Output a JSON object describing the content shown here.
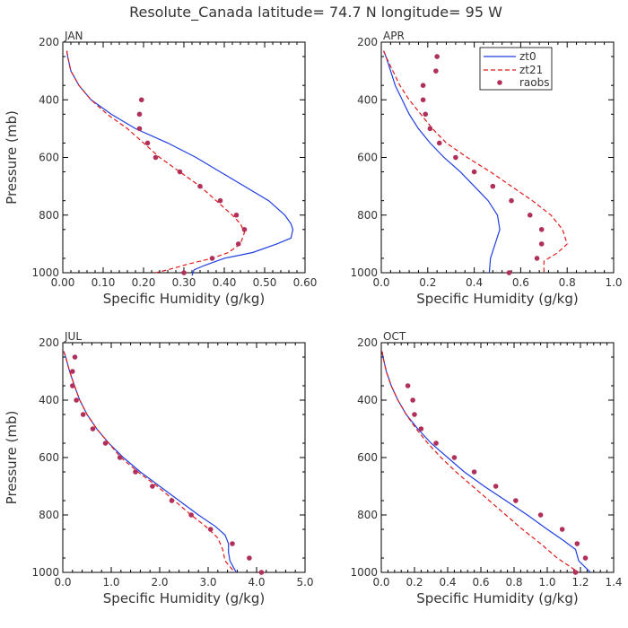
{
  "figure_title": "Resolute_Canada  latitude= 74.7 N longitude= 95 W",
  "colors": {
    "zt0": "#1f3fe0",
    "zt21": "#e01a1a",
    "raobs": "#b0305a"
  },
  "legend": {
    "zt0": "zt0",
    "zt21": "zt21",
    "raobs": "raobs"
  },
  "chart_data": [
    {
      "type": "line",
      "panel": "JAN",
      "title": "JAN",
      "xlabel": "Specific Humidity (g/kg)",
      "ylabel": "Pressure (mb)",
      "xlim": [
        0,
        0.6
      ],
      "ylim": [
        1000,
        200
      ],
      "xticks": [
        0,
        0.1,
        0.2,
        0.3,
        0.4,
        0.5,
        0.6
      ],
      "xtick_labels": [
        "0.00",
        "0.10",
        "0.20",
        "0.30",
        "0.40",
        "0.50",
        "0.60"
      ],
      "yticks": [
        1000,
        800,
        600,
        400,
        200
      ],
      "ytick_labels": [
        "1000",
        "800",
        "600",
        "400",
        "200"
      ],
      "series": [
        {
          "name": "zt0",
          "style": "solid",
          "points": [
            [
              0.01,
              230
            ],
            [
              0.012,
              250
            ],
            [
              0.02,
              300
            ],
            [
              0.04,
              350
            ],
            [
              0.07,
              400
            ],
            [
              0.12,
              450
            ],
            [
              0.18,
              500
            ],
            [
              0.26,
              550
            ],
            [
              0.33,
              600
            ],
            [
              0.39,
              650
            ],
            [
              0.45,
              700
            ],
            [
              0.51,
              750
            ],
            [
              0.55,
              800
            ],
            [
              0.565,
              830
            ],
            [
              0.57,
              850
            ],
            [
              0.565,
              880
            ],
            [
              0.53,
              900
            ],
            [
              0.47,
              930
            ],
            [
              0.4,
              950
            ],
            [
              0.35,
              975
            ],
            [
              0.325,
              990
            ],
            [
              0.32,
              1010
            ]
          ]
        },
        {
          "name": "zt21",
          "style": "dashed",
          "points": [
            [
              0.01,
              230
            ],
            [
              0.012,
              250
            ],
            [
              0.02,
              300
            ],
            [
              0.04,
              350
            ],
            [
              0.07,
              400
            ],
            [
              0.11,
              450
            ],
            [
              0.16,
              500
            ],
            [
              0.2,
              550
            ],
            [
              0.24,
              600
            ],
            [
              0.29,
              650
            ],
            [
              0.34,
              700
            ],
            [
              0.38,
              750
            ],
            [
              0.42,
              800
            ],
            [
              0.44,
              830
            ],
            [
              0.45,
              860
            ],
            [
              0.44,
              900
            ],
            [
              0.41,
              930
            ],
            [
              0.37,
              950
            ],
            [
              0.31,
              970
            ],
            [
              0.26,
              990
            ],
            [
              0.23,
              1000
            ]
          ]
        },
        {
          "name": "raobs",
          "style": "points",
          "points": [
            [
              0.195,
              400
            ],
            [
              0.19,
              450
            ],
            [
              0.19,
              500
            ],
            [
              0.21,
              550
            ],
            [
              0.23,
              600
            ],
            [
              0.29,
              650
            ],
            [
              0.34,
              700
            ],
            [
              0.39,
              750
            ],
            [
              0.43,
              800
            ],
            [
              0.45,
              850
            ],
            [
              0.435,
              900
            ],
            [
              0.37,
              950
            ],
            [
              0.3,
              1000
            ]
          ]
        }
      ]
    },
    {
      "type": "line",
      "panel": "APR",
      "title": "APR",
      "xlabel": "Specific Humidity (g/kg)",
      "ylabel": "Pressure (mb)",
      "xlim": [
        0,
        1.0
      ],
      "ylim": [
        1000,
        200
      ],
      "xticks": [
        0,
        0.2,
        0.4,
        0.6,
        0.8,
        1.0
      ],
      "xtick_labels": [
        "0.0",
        "0.2",
        "0.4",
        "0.6",
        "0.8",
        "1.0"
      ],
      "yticks": [
        1000,
        800,
        600,
        400,
        200
      ],
      "ytick_labels": [
        "1000",
        "800",
        "600",
        "400",
        "200"
      ],
      "legend_position": "top-right",
      "series": [
        {
          "name": "zt0",
          "style": "solid",
          "points": [
            [
              0.01,
              230
            ],
            [
              0.02,
              250
            ],
            [
              0.04,
              300
            ],
            [
              0.06,
              350
            ],
            [
              0.09,
              400
            ],
            [
              0.12,
              450
            ],
            [
              0.16,
              500
            ],
            [
              0.21,
              550
            ],
            [
              0.27,
              600
            ],
            [
              0.34,
              650
            ],
            [
              0.4,
              700
            ],
            [
              0.46,
              750
            ],
            [
              0.5,
              800
            ],
            [
              0.51,
              850
            ],
            [
              0.49,
              900
            ],
            [
              0.47,
              950
            ],
            [
              0.465,
              1000
            ]
          ]
        },
        {
          "name": "zt21",
          "style": "dashed",
          "points": [
            [
              0.01,
              230
            ],
            [
              0.02,
              250
            ],
            [
              0.05,
              300
            ],
            [
              0.08,
              350
            ],
            [
              0.12,
              400
            ],
            [
              0.17,
              450
            ],
            [
              0.22,
              500
            ],
            [
              0.28,
              550
            ],
            [
              0.37,
              600
            ],
            [
              0.47,
              650
            ],
            [
              0.56,
              700
            ],
            [
              0.65,
              750
            ],
            [
              0.73,
              800
            ],
            [
              0.78,
              850
            ],
            [
              0.8,
              900
            ],
            [
              0.76,
              930
            ],
            [
              0.7,
              960
            ],
            [
              0.7,
              1000
            ]
          ]
        },
        {
          "name": "raobs",
          "style": "points",
          "points": [
            [
              0.24,
              250
            ],
            [
              0.235,
              300
            ],
            [
              0.18,
              350
            ],
            [
              0.18,
              400
            ],
            [
              0.19,
              450
            ],
            [
              0.21,
              500
            ],
            [
              0.25,
              550
            ],
            [
              0.32,
              600
            ],
            [
              0.4,
              650
            ],
            [
              0.48,
              700
            ],
            [
              0.56,
              750
            ],
            [
              0.64,
              800
            ],
            [
              0.69,
              850
            ],
            [
              0.69,
              900
            ],
            [
              0.67,
              950
            ],
            [
              0.55,
              1000
            ]
          ]
        }
      ]
    },
    {
      "type": "line",
      "panel": "JUL",
      "title": "JUL",
      "xlabel": "Specific Humidity (g/kg)",
      "ylabel": "Pressure (mb)",
      "xlim": [
        0,
        5.0
      ],
      "ylim": [
        1000,
        200
      ],
      "xticks": [
        0,
        1,
        2,
        3,
        4,
        5
      ],
      "xtick_labels": [
        "0.0",
        "1.0",
        "2.0",
        "3.0",
        "4.0",
        "5.0"
      ],
      "yticks": [
        1000,
        800,
        600,
        400,
        200
      ],
      "ytick_labels": [
        "1000",
        "800",
        "600",
        "400",
        "200"
      ],
      "series": [
        {
          "name": "zt0",
          "style": "solid",
          "points": [
            [
              0.02,
              230
            ],
            [
              0.06,
              250
            ],
            [
              0.14,
              300
            ],
            [
              0.24,
              350
            ],
            [
              0.35,
              400
            ],
            [
              0.5,
              450
            ],
            [
              0.7,
              500
            ],
            [
              0.95,
              550
            ],
            [
              1.25,
              600
            ],
            [
              1.6,
              650
            ],
            [
              2.0,
              700
            ],
            [
              2.4,
              750
            ],
            [
              2.8,
              800
            ],
            [
              3.15,
              840
            ],
            [
              3.35,
              870
            ],
            [
              3.42,
              900
            ],
            [
              3.42,
              930
            ],
            [
              3.45,
              960
            ],
            [
              3.58,
              1000
            ]
          ]
        },
        {
          "name": "zt21",
          "style": "dashed",
          "points": [
            [
              0.02,
              230
            ],
            [
              0.06,
              250
            ],
            [
              0.14,
              300
            ],
            [
              0.24,
              350
            ],
            [
              0.35,
              400
            ],
            [
              0.5,
              450
            ],
            [
              0.7,
              500
            ],
            [
              0.95,
              550
            ],
            [
              1.2,
              600
            ],
            [
              1.55,
              650
            ],
            [
              1.95,
              700
            ],
            [
              2.3,
              750
            ],
            [
              2.65,
              800
            ],
            [
              2.95,
              840
            ],
            [
              3.2,
              880
            ],
            [
              3.3,
              920
            ],
            [
              3.35,
              960
            ],
            [
              3.55,
              1000
            ]
          ]
        },
        {
          "name": "raobs",
          "style": "points",
          "points": [
            [
              0.25,
              250
            ],
            [
              0.2,
              300
            ],
            [
              0.2,
              350
            ],
            [
              0.28,
              400
            ],
            [
              0.42,
              450
            ],
            [
              0.62,
              500
            ],
            [
              0.88,
              550
            ],
            [
              1.18,
              600
            ],
            [
              1.5,
              650
            ],
            [
              1.85,
              700
            ],
            [
              2.25,
              750
            ],
            [
              2.65,
              800
            ],
            [
              3.05,
              850
            ],
            [
              3.5,
              900
            ],
            [
              3.85,
              950
            ],
            [
              4.1,
              1000
            ]
          ]
        }
      ]
    },
    {
      "type": "line",
      "panel": "OCT",
      "title": "OCT",
      "xlabel": "Specific Humidity (g/kg)",
      "ylabel": "Pressure (mb)",
      "xlim": [
        0,
        1.4
      ],
      "ylim": [
        1000,
        200
      ],
      "xticks": [
        0,
        0.2,
        0.4,
        0.6,
        0.8,
        1.0,
        1.2,
        1.4
      ],
      "xtick_labels": [
        "0.0",
        "0.2",
        "0.4",
        "0.6",
        "0.8",
        "1.0",
        "1.2",
        "1.4"
      ],
      "yticks": [
        1000,
        800,
        600,
        400,
        200
      ],
      "ytick_labels": [
        "1000",
        "800",
        "600",
        "400",
        "200"
      ],
      "series": [
        {
          "name": "zt0",
          "style": "solid",
          "points": [
            [
              0.005,
              230
            ],
            [
              0.01,
              250
            ],
            [
              0.03,
              300
            ],
            [
              0.06,
              350
            ],
            [
              0.1,
              400
            ],
            [
              0.15,
              450
            ],
            [
              0.22,
              500
            ],
            [
              0.3,
              550
            ],
            [
              0.4,
              600
            ],
            [
              0.5,
              650
            ],
            [
              0.62,
              700
            ],
            [
              0.75,
              750
            ],
            [
              0.88,
              800
            ],
            [
              1.0,
              850
            ],
            [
              1.1,
              890
            ],
            [
              1.17,
              920
            ],
            [
              1.19,
              960
            ],
            [
              1.26,
              1000
            ]
          ]
        },
        {
          "name": "zt21",
          "style": "dashed",
          "points": [
            [
              0.005,
              230
            ],
            [
              0.01,
              250
            ],
            [
              0.03,
              300
            ],
            [
              0.06,
              350
            ],
            [
              0.1,
              400
            ],
            [
              0.15,
              450
            ],
            [
              0.21,
              500
            ],
            [
              0.28,
              550
            ],
            [
              0.36,
              600
            ],
            [
              0.45,
              650
            ],
            [
              0.55,
              700
            ],
            [
              0.65,
              750
            ],
            [
              0.75,
              800
            ],
            [
              0.85,
              850
            ],
            [
              0.96,
              900
            ],
            [
              1.06,
              950
            ],
            [
              1.15,
              985
            ],
            [
              1.19,
              1000
            ]
          ]
        },
        {
          "name": "raobs",
          "style": "points",
          "points": [
            [
              0.16,
              350
            ],
            [
              0.19,
              400
            ],
            [
              0.2,
              450
            ],
            [
              0.24,
              500
            ],
            [
              0.33,
              550
            ],
            [
              0.44,
              600
            ],
            [
              0.56,
              650
            ],
            [
              0.69,
              700
            ],
            [
              0.81,
              750
            ],
            [
              0.96,
              800
            ],
            [
              1.09,
              850
            ],
            [
              1.18,
              900
            ],
            [
              1.23,
              950
            ],
            [
              1.17,
              1000
            ]
          ]
        }
      ]
    }
  ]
}
